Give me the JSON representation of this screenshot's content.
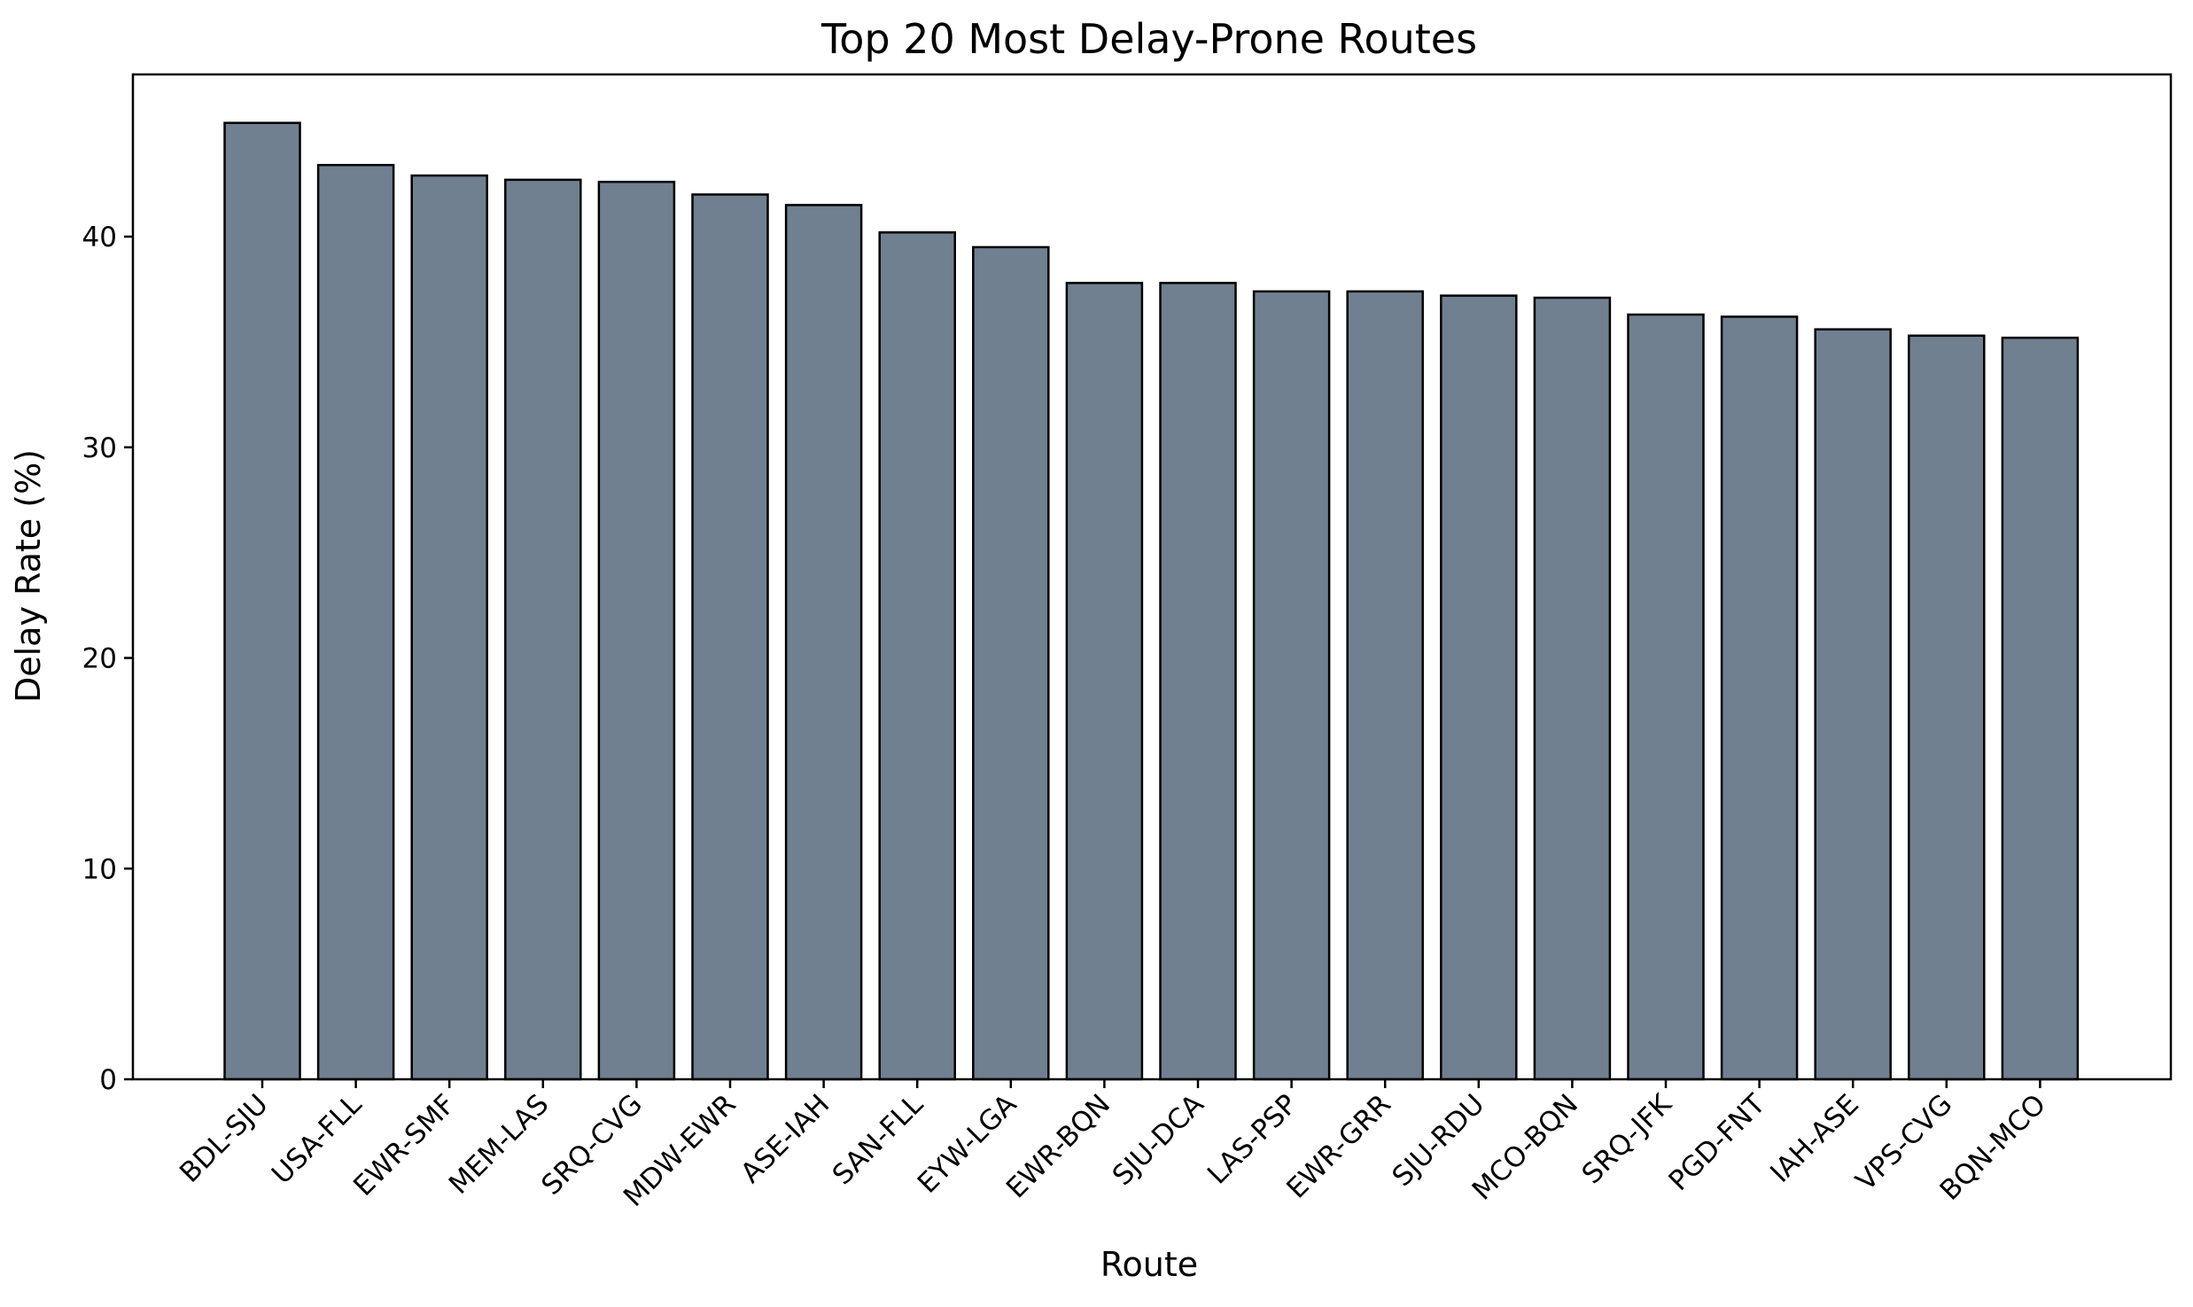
{
  "chart_data": {
    "type": "bar",
    "title": "Top 20 Most Delay-Prone Routes",
    "xlabel": "Route",
    "ylabel": "Delay Rate (%)",
    "ylim": [
      0,
      47.7
    ],
    "yticks": [
      0,
      10,
      20,
      30,
      40
    ],
    "grid": false,
    "bar_color": "#708090",
    "edge_color": "#000000",
    "categories": [
      "BDL-SJU",
      "USA-FLL",
      "EWR-SMF",
      "MEM-LAS",
      "SRQ-CVG",
      "MDW-EWR",
      "ASE-IAH",
      "SAN-FLL",
      "EYW-LGA",
      "EWR-BQN",
      "SJU-DCA",
      "LAS-PSP",
      "EWR-GRR",
      "SJU-RDU",
      "MCO-BQN",
      "SRQ-JFK",
      "PGD-FNT",
      "IAH-ASE",
      "VPS-CVG",
      "BQN-MCO"
    ],
    "values": [
      45.4,
      43.4,
      42.9,
      42.7,
      42.6,
      42.0,
      41.5,
      40.2,
      39.5,
      37.8,
      37.8,
      37.4,
      37.4,
      37.2,
      37.1,
      36.3,
      36.2,
      35.6,
      35.3,
      35.2
    ]
  }
}
